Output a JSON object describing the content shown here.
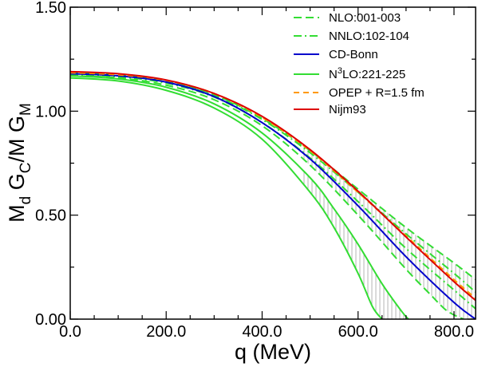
{
  "chart_data": {
    "type": "line",
    "xlabel": "q (MeV)",
    "ylabel": {
      "main": "M",
      "sub1": "d",
      "mid1": " G",
      "sub2": "C",
      "mid2": "/M G",
      "sub3": "M"
    },
    "xlim": [
      0,
      845
    ],
    "ylim": [
      0,
      1.5
    ],
    "xticks": [
      0,
      200,
      400,
      600,
      800
    ],
    "xtick_labels": [
      "0.0",
      "200.0",
      "400.0",
      "600.0",
      "800.0"
    ],
    "yticks": [
      0,
      0.5,
      1.0,
      1.5
    ],
    "ytick_labels": [
      "0.00",
      "0.50",
      "1.00",
      "1.50"
    ],
    "grid": false,
    "legend_position": "top-right",
    "legend": [
      {
        "key": "nlo",
        "label": "NLO:001-003",
        "color": "#33dd33",
        "dash": "10,5"
      },
      {
        "key": "nnlo",
        "label": "NNLO:102-104",
        "color": "#33dd33",
        "dash": "10,4,2,4"
      },
      {
        "key": "cdbonn",
        "label": "CD-Bonn",
        "color": "#0000cc",
        "dash": ""
      },
      {
        "key": "n3lo",
        "label_main": "N",
        "label_sup": "3",
        "label_rest": "LO:221-225",
        "color": "#33dd33",
        "dash": ""
      },
      {
        "key": "opep",
        "label": "OPEP + R=1.5 fm",
        "color": "#ff9900",
        "dash": "7,5"
      },
      {
        "key": "nijm",
        "label": "Nijm93",
        "color": "#dd0000",
        "dash": ""
      }
    ],
    "series": [
      {
        "key": "nlo_upper",
        "color": "#33dd33",
        "dash": "10,5",
        "x": [
          0,
          100,
          200,
          300,
          400,
          500,
          600,
          700,
          800,
          845
        ],
        "y": [
          1.185,
          1.175,
          1.145,
          1.08,
          0.965,
          0.81,
          0.625,
          0.44,
          0.27,
          0.19
        ]
      },
      {
        "key": "nlo_lower",
        "color": "#33dd33",
        "dash": "10,5",
        "x": [
          0,
          100,
          200,
          300,
          400,
          500,
          600,
          700,
          750,
          780,
          800,
          820
        ],
        "y": [
          1.17,
          1.16,
          1.125,
          1.055,
          0.93,
          0.74,
          0.5,
          0.24,
          0.12,
          0.05,
          0.02,
          0.0
        ]
      },
      {
        "key": "nnlo_upper",
        "color": "#33dd33",
        "dash": "10,4,2,4",
        "x": [
          0,
          100,
          200,
          300,
          400,
          500,
          600,
          700,
          800,
          845
        ],
        "y": [
          1.18,
          1.17,
          1.14,
          1.075,
          0.96,
          0.8,
          0.61,
          0.41,
          0.22,
          0.13
        ]
      },
      {
        "key": "nnlo_lower",
        "color": "#33dd33",
        "dash": "10,4,2,4",
        "x": [
          0,
          100,
          200,
          300,
          400,
          500,
          600,
          700,
          800,
          845
        ],
        "y": [
          1.175,
          1.165,
          1.135,
          1.068,
          0.945,
          0.775,
          0.565,
          0.34,
          0.14,
          0.05
        ]
      },
      {
        "key": "cdbonn",
        "color": "#0000cc",
        "dash": "",
        "x": [
          0,
          100,
          200,
          300,
          400,
          500,
          600,
          700,
          800,
          845
        ],
        "y": [
          1.18,
          1.17,
          1.14,
          1.07,
          0.945,
          0.77,
          0.545,
          0.3,
          0.08,
          0.0
        ]
      },
      {
        "key": "n3lo_upper",
        "color": "#33dd33",
        "dash": "",
        "x": [
          0,
          100,
          200,
          300,
          400,
          500,
          550,
          600,
          650,
          690,
          705
        ],
        "y": [
          1.17,
          1.155,
          1.115,
          1.035,
          0.895,
          0.68,
          0.53,
          0.36,
          0.17,
          0.04,
          0.0
        ]
      },
      {
        "key": "n3lo_lower",
        "color": "#33dd33",
        "dash": "",
        "x": [
          0,
          100,
          200,
          300,
          400,
          500,
          550,
          600,
          630,
          650
        ],
        "y": [
          1.16,
          1.145,
          1.1,
          1.015,
          0.865,
          0.61,
          0.44,
          0.22,
          0.06,
          0.0
        ]
      },
      {
        "key": "opep",
        "color": "#ff9900",
        "dash": "7,5",
        "x": [
          0,
          100,
          200,
          300,
          400,
          500,
          600,
          700,
          800,
          845
        ],
        "y": [
          1.185,
          1.175,
          1.148,
          1.085,
          0.97,
          0.81,
          0.61,
          0.4,
          0.19,
          0.1
        ]
      },
      {
        "key": "nijm",
        "color": "#dd0000",
        "dash": "",
        "x": [
          0,
          100,
          200,
          300,
          400,
          500,
          600,
          700,
          800,
          845
        ],
        "y": [
          1.19,
          1.18,
          1.15,
          1.085,
          0.975,
          0.815,
          0.615,
          0.395,
          0.18,
          0.09
        ]
      }
    ],
    "bands": [
      {
        "upper": "nlo_upper",
        "lower": "nlo_lower",
        "from": 480,
        "to": 845
      },
      {
        "upper": "n3lo_upper",
        "lower": "n3lo_lower",
        "from": 480,
        "to": 705
      }
    ]
  }
}
